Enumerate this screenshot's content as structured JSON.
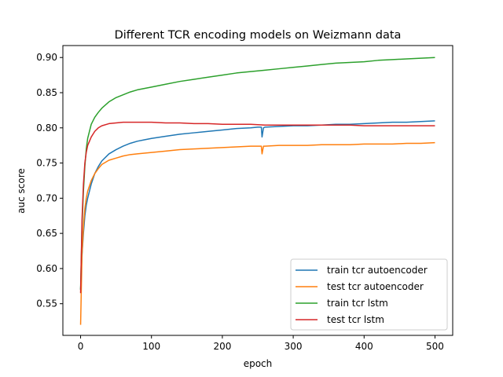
{
  "chart_data": {
    "type": "line",
    "title": "Different TCR encoding models on Weizmann data",
    "xlabel": "epoch",
    "ylabel": "auc score",
    "xlim": [
      -25,
      525
    ],
    "ylim": [
      0.505,
      0.917
    ],
    "xticks": [
      0,
      100,
      200,
      300,
      400,
      500
    ],
    "yticks": [
      0.55,
      0.6,
      0.65,
      0.7,
      0.75,
      0.8,
      0.85,
      0.9
    ],
    "grid": false,
    "legend_position": "lower-right",
    "series": [
      {
        "name": "train tcr autoencoder",
        "color": "#1f77b4",
        "x": [
          0,
          2,
          4,
          6,
          8,
          10,
          15,
          20,
          25,
          30,
          40,
          50,
          60,
          70,
          80,
          90,
          100,
          120,
          140,
          160,
          180,
          200,
          220,
          240,
          250,
          255,
          256,
          258,
          260,
          280,
          300,
          320,
          340,
          360,
          380,
          400,
          420,
          440,
          460,
          480,
          500
        ],
        "y": [
          0.57,
          0.62,
          0.65,
          0.675,
          0.69,
          0.7,
          0.72,
          0.735,
          0.745,
          0.753,
          0.763,
          0.769,
          0.774,
          0.778,
          0.781,
          0.783,
          0.785,
          0.788,
          0.791,
          0.793,
          0.795,
          0.797,
          0.799,
          0.8,
          0.801,
          0.801,
          0.787,
          0.8,
          0.801,
          0.802,
          0.803,
          0.803,
          0.804,
          0.805,
          0.805,
          0.806,
          0.807,
          0.808,
          0.808,
          0.809,
          0.81
        ]
      },
      {
        "name": "test tcr autoencoder",
        "color": "#ff7f0e",
        "x": [
          0,
          2,
          4,
          6,
          8,
          10,
          15,
          20,
          25,
          30,
          40,
          50,
          60,
          70,
          80,
          90,
          100,
          120,
          140,
          160,
          180,
          200,
          220,
          240,
          250,
          255,
          256,
          258,
          260,
          280,
          300,
          320,
          340,
          360,
          380,
          400,
          420,
          440,
          460,
          480,
          500
        ],
        "y": [
          0.52,
          0.62,
          0.66,
          0.685,
          0.7,
          0.71,
          0.725,
          0.735,
          0.742,
          0.748,
          0.754,
          0.757,
          0.76,
          0.762,
          0.763,
          0.764,
          0.765,
          0.767,
          0.769,
          0.77,
          0.771,
          0.772,
          0.773,
          0.774,
          0.774,
          0.774,
          0.763,
          0.774,
          0.774,
          0.775,
          0.775,
          0.775,
          0.776,
          0.776,
          0.776,
          0.777,
          0.777,
          0.777,
          0.778,
          0.778,
          0.779
        ]
      },
      {
        "name": "train tcr lstm",
        "color": "#2ca02c",
        "x": [
          0,
          2,
          4,
          6,
          8,
          10,
          15,
          20,
          25,
          30,
          40,
          50,
          60,
          70,
          80,
          90,
          100,
          120,
          140,
          160,
          180,
          200,
          220,
          240,
          260,
          280,
          300,
          320,
          340,
          360,
          380,
          400,
          420,
          440,
          460,
          480,
          500
        ],
        "y": [
          0.57,
          0.66,
          0.71,
          0.745,
          0.77,
          0.785,
          0.805,
          0.815,
          0.822,
          0.828,
          0.837,
          0.843,
          0.847,
          0.851,
          0.854,
          0.856,
          0.858,
          0.862,
          0.866,
          0.869,
          0.872,
          0.875,
          0.878,
          0.88,
          0.882,
          0.884,
          0.886,
          0.888,
          0.89,
          0.892,
          0.893,
          0.894,
          0.896,
          0.897,
          0.898,
          0.899,
          0.9
        ]
      },
      {
        "name": "test tcr lstm",
        "color": "#d62728",
        "x": [
          0,
          2,
          4,
          6,
          8,
          10,
          15,
          20,
          25,
          30,
          40,
          50,
          60,
          70,
          80,
          90,
          100,
          120,
          140,
          160,
          180,
          200,
          220,
          240,
          260,
          280,
          300,
          320,
          340,
          360,
          380,
          400,
          420,
          440,
          460,
          480,
          500
        ],
        "y": [
          0.565,
          0.67,
          0.72,
          0.75,
          0.765,
          0.775,
          0.787,
          0.795,
          0.8,
          0.803,
          0.806,
          0.807,
          0.808,
          0.808,
          0.808,
          0.808,
          0.808,
          0.807,
          0.807,
          0.806,
          0.806,
          0.805,
          0.805,
          0.805,
          0.804,
          0.804,
          0.804,
          0.804,
          0.804,
          0.804,
          0.804,
          0.803,
          0.803,
          0.803,
          0.803,
          0.803,
          0.803
        ]
      }
    ]
  }
}
